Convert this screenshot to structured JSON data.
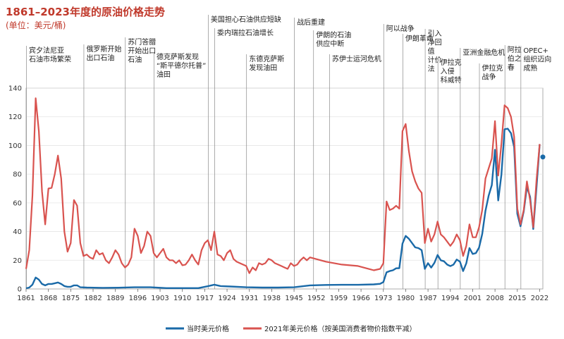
{
  "title": "1861–2023年度的原油价格走势",
  "unit": "(单位：美元/桶)",
  "chart_data": {
    "type": "line",
    "xlim": [
      1861,
      2023
    ],
    "ylim": [
      0,
      140
    ],
    "yticks": [
      0,
      20,
      40,
      60,
      80,
      100,
      120,
      140
    ],
    "xticks": [
      1861,
      1868,
      1875,
      1882,
      1889,
      1896,
      1903,
      1910,
      1917,
      1924,
      1931,
      1938,
      1945,
      1952,
      1959,
      1966,
      1973,
      1980,
      1987,
      1994,
      2001,
      2008,
      2015,
      2022
    ],
    "series": [
      {
        "name": "当时美元价格",
        "color": "#1a6aa8",
        "x": [
          1861,
          1862,
          1863,
          1864,
          1865,
          1866,
          1867,
          1868,
          1869,
          1870,
          1871,
          1872,
          1873,
          1874,
          1875,
          1876,
          1877,
          1878,
          1880,
          1885,
          1890,
          1895,
          1900,
          1905,
          1910,
          1915,
          1918,
          1920,
          1922,
          1925,
          1930,
          1935,
          1940,
          1945,
          1950,
          1955,
          1960,
          1965,
          1970,
          1972,
          1973,
          1974,
          1975,
          1976,
          1977,
          1978,
          1979,
          1980,
          1981,
          1982,
          1983,
          1984,
          1985,
          1986,
          1987,
          1988,
          1989,
          1990,
          1991,
          1992,
          1993,
          1994,
          1995,
          1996,
          1997,
          1998,
          1999,
          2000,
          2001,
          2002,
          2003,
          2004,
          2005,
          2006,
          2007,
          2008,
          2009,
          2010,
          2011,
          2012,
          2013,
          2014,
          2015,
          2016,
          2017,
          2018,
          2019,
          2020,
          2021,
          2022
        ],
        "y": [
          0.5,
          1,
          3,
          8,
          6.5,
          3.5,
          2.5,
          3.5,
          3.5,
          4,
          4.5,
          3.5,
          2,
          1.5,
          1.5,
          2.5,
          2.5,
          1.2,
          1,
          0.8,
          0.9,
          1.2,
          1.2,
          0.6,
          0.6,
          0.6,
          1.9,
          3,
          2,
          1.7,
          1.2,
          1,
          1,
          1.2,
          2.5,
          2.8,
          2.9,
          2.9,
          3.2,
          3.6,
          4.8,
          11.6,
          12.5,
          13,
          14.4,
          14.5,
          31.6,
          37,
          35,
          32,
          29,
          28.5,
          27,
          14,
          18,
          14.9,
          18.2,
          23.7,
          20,
          19.3,
          17,
          15.9,
          17,
          20.5,
          19,
          12.5,
          17.9,
          28.5,
          24.4,
          25,
          28.8,
          38.3,
          54.5,
          65,
          72.4,
          97,
          61.7,
          79.6,
          111.3,
          111.7,
          108.6,
          98.9,
          52.4,
          43.7,
          54.2,
          71.3,
          64.2,
          41.8,
          70.9,
          100.9
        ]
      },
      {
        "name": "2021年美元价格（按美国消费者物价指数平减）",
        "color": "#d9534f",
        "x": [
          1861,
          1862,
          1863,
          1864,
          1865,
          1866,
          1867,
          1868,
          1869,
          1870,
          1871,
          1872,
          1873,
          1874,
          1875,
          1876,
          1877,
          1878,
          1879,
          1880,
          1881,
          1882,
          1883,
          1884,
          1885,
          1886,
          1887,
          1888,
          1889,
          1890,
          1891,
          1892,
          1893,
          1894,
          1895,
          1896,
          1897,
          1898,
          1899,
          1900,
          1901,
          1902,
          1903,
          1904,
          1905,
          1906,
          1907,
          1908,
          1909,
          1910,
          1911,
          1912,
          1913,
          1914,
          1915,
          1916,
          1917,
          1918,
          1919,
          1920,
          1921,
          1922,
          1923,
          1924,
          1925,
          1926,
          1927,
          1928,
          1929,
          1930,
          1931,
          1932,
          1933,
          1934,
          1935,
          1936,
          1937,
          1938,
          1939,
          1940,
          1941,
          1942,
          1943,
          1944,
          1945,
          1946,
          1947,
          1948,
          1949,
          1950,
          1955,
          1960,
          1965,
          1970,
          1972,
          1973,
          1974,
          1975,
          1976,
          1977,
          1978,
          1979,
          1980,
          1981,
          1982,
          1983,
          1984,
          1985,
          1986,
          1987,
          1988,
          1989,
          1990,
          1991,
          1992,
          1993,
          1994,
          1995,
          1996,
          1997,
          1998,
          1999,
          2000,
          2001,
          2002,
          2003,
          2004,
          2005,
          2006,
          2007,
          2008,
          2009,
          2010,
          2011,
          2012,
          2013,
          2014,
          2015,
          2016,
          2017,
          2018,
          2019,
          2020,
          2021,
          2022
        ],
        "y": [
          14,
          27,
          65,
          133,
          110,
          68,
          45,
          70,
          70.5,
          80,
          93,
          77,
          40,
          26,
          32,
          62,
          58,
          32,
          23,
          24,
          22,
          21,
          27,
          24,
          25,
          20,
          18,
          22,
          27,
          24,
          18,
          15,
          17,
          22,
          42,
          37,
          25,
          30,
          40,
          37,
          25,
          22,
          25,
          28,
          22,
          20,
          20,
          18,
          20,
          16.5,
          17,
          20,
          24,
          20,
          17,
          27,
          32,
          34,
          27,
          40,
          24,
          23,
          20,
          25,
          27,
          21,
          19,
          18,
          17,
          16,
          11,
          15,
          13,
          18,
          17,
          18,
          21,
          20,
          18,
          17,
          16,
          15,
          14,
          18,
          16,
          17,
          20,
          22,
          20,
          22,
          19,
          17,
          16,
          13,
          14,
          18,
          61,
          55,
          56,
          58,
          56,
          110,
          115,
          96,
          82,
          75,
          70,
          67,
          32,
          42,
          33,
          38,
          47,
          38,
          36,
          33,
          30,
          33,
          38,
          34,
          23,
          30,
          45,
          36,
          36,
          43,
          55,
          77,
          84,
          91,
          117,
          79,
          101,
          128,
          126,
          120,
          106,
          56,
          45,
          55,
          75,
          62,
          43,
          76,
          101
        ]
      }
    ],
    "marker": {
      "x": 2023,
      "y": 92,
      "color": "#1a6aa8"
    },
    "events": [
      {
        "year": 1861,
        "lines": [
          "宾夕法尼亚",
          "石油市场繁荣"
        ]
      },
      {
        "year": 1879,
        "lines": [
          "俄罗斯开始",
          "出口石油"
        ]
      },
      {
        "year": 1892,
        "lines": [
          "苏门答腊",
          "开始出口",
          "石油"
        ]
      },
      {
        "year": 1901,
        "lines": [
          "德克萨斯发现",
          "“斯平德尔托普”",
          "油田"
        ]
      },
      {
        "year": 1918,
        "lines": [
          "美国担心石油供应短缺"
        ]
      },
      {
        "year": 1920,
        "lines": [
          "委内瑞拉石油增长"
        ]
      },
      {
        "year": 1930,
        "lines": [
          "东德克萨斯",
          "发现油田"
        ]
      },
      {
        "year": 1945,
        "lines": [
          "战后重建"
        ]
      },
      {
        "year": 1951,
        "lines": [
          "伊朗的石油",
          "供应中断"
        ]
      },
      {
        "year": 1956,
        "lines": [
          "苏伊士运河危机"
        ]
      },
      {
        "year": 1973,
        "lines": [
          "阿以战争"
        ]
      },
      {
        "year": 1979,
        "lines": [
          "伊朗革命"
        ]
      },
      {
        "year": 1986,
        "lines": [
          "引入",
          "净回",
          "值",
          "计价",
          "法"
        ]
      },
      {
        "year": 1990,
        "lines": [
          "伊拉克",
          "入侵",
          "科威特"
        ]
      },
      {
        "year": 1997,
        "lines": [
          "亚洲金融危机"
        ]
      },
      {
        "year": 2003,
        "lines": [
          "伊拉克",
          "战争"
        ]
      },
      {
        "year": 2011,
        "lines": [
          "阿拉",
          "伯之",
          "春"
        ]
      },
      {
        "year": 2016,
        "lines": [
          "OPEC+",
          "组织迈向",
          "成熟"
        ]
      }
    ]
  }
}
